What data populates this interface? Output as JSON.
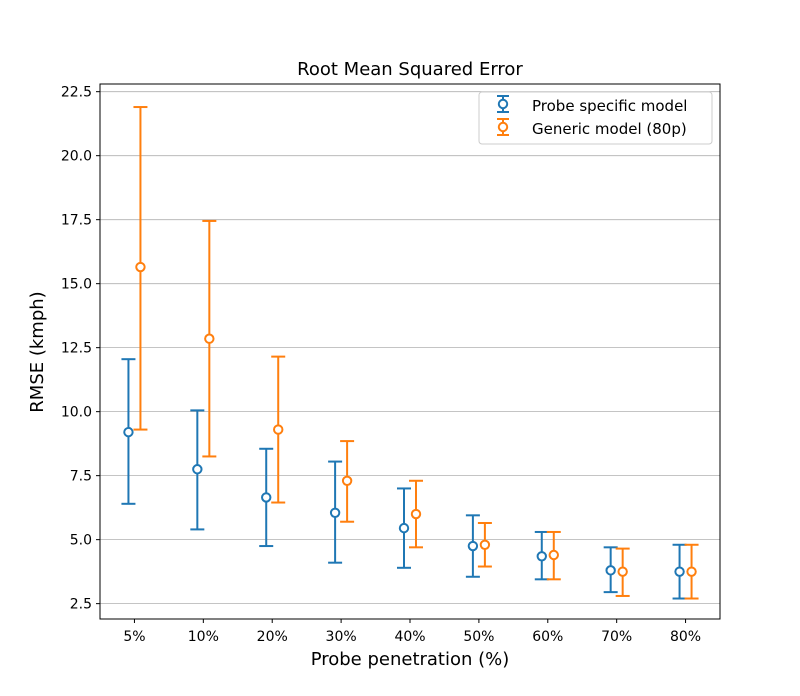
{
  "chart_data": {
    "type": "errorbar",
    "title": "Root Mean Squared Error",
    "xlabel": "Probe penetration (%)",
    "ylabel": "RMSE (kmph)",
    "categories": [
      "5%",
      "10%",
      "20%",
      "30%",
      "40%",
      "50%",
      "60%",
      "70%",
      "80%"
    ],
    "ylim": [
      1.9,
      22.8
    ],
    "yticks": [
      2.5,
      5.0,
      7.5,
      10.0,
      12.5,
      15.0,
      17.5,
      20.0,
      22.5
    ],
    "ytick_labels": [
      "2.5",
      "5.0",
      "7.5",
      "10.0",
      "12.5",
      "15.0",
      "17.5",
      "20.0",
      "22.5"
    ],
    "grid": "horizontal",
    "legend_position": "top-right",
    "series": [
      {
        "name": "Probe specific model",
        "color": "#1f77b4",
        "values": [
          9.2,
          7.75,
          6.65,
          6.05,
          5.45,
          4.75,
          4.35,
          3.8,
          3.75
        ],
        "lower": [
          6.4,
          5.4,
          4.75,
          4.1,
          3.9,
          3.55,
          3.45,
          2.95,
          2.7
        ],
        "upper": [
          12.05,
          10.05,
          8.55,
          8.05,
          7.0,
          5.95,
          5.3,
          4.7,
          4.8
        ]
      },
      {
        "name": "Generic model (80p)",
        "color": "#ff7f0e",
        "values": [
          15.65,
          12.85,
          9.3,
          7.3,
          6.0,
          4.8,
          4.4,
          3.75,
          3.75
        ],
        "lower": [
          9.3,
          8.25,
          6.45,
          5.7,
          4.7,
          3.95,
          3.45,
          2.8,
          2.7
        ],
        "upper": [
          21.9,
          17.45,
          12.15,
          8.85,
          7.3,
          5.65,
          5.3,
          4.65,
          4.8
        ]
      }
    ]
  }
}
